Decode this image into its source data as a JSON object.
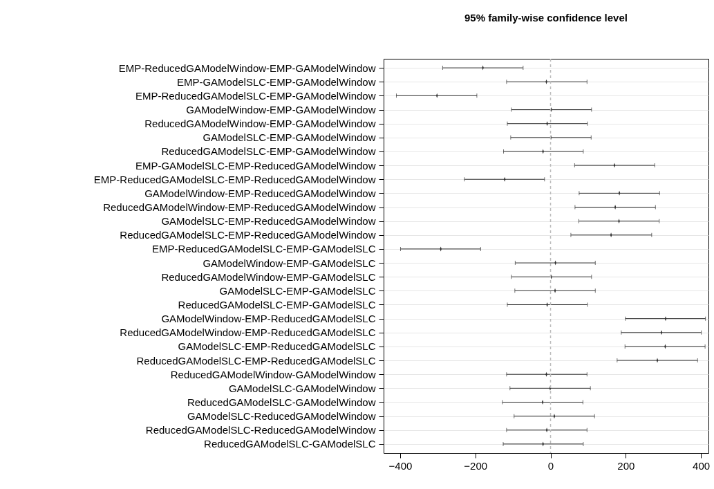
{
  "chart_data": {
    "type": "scatter",
    "title": "95% family-wise confidence level",
    "orientation": "horizontal",
    "categories": [
      "EMP-ReducedGAModelWindow-EMP-GAModelWindow",
      "EMP-GAModelSLC-EMP-GAModelWindow",
      "EMP-ReducedGAModelSLC-EMP-GAModelWindow",
      "GAModelWindow-EMP-GAModelWindow",
      "ReducedGAModelWindow-EMP-GAModelWindow",
      "GAModelSLC-EMP-GAModelWindow",
      "ReducedGAModelSLC-EMP-GAModelWindow",
      "EMP-GAModelSLC-EMP-ReducedGAModelWindow",
      "EMP-ReducedGAModelSLC-EMP-ReducedGAModelWindow",
      "GAModelWindow-EMP-ReducedGAModelWindow",
      "ReducedGAModelWindow-EMP-ReducedGAModelWindow",
      "GAModelSLC-EMP-ReducedGAModelWindow",
      "ReducedGAModelSLC-EMP-ReducedGAModelWindow",
      "EMP-ReducedGAModelSLC-EMP-GAModelSLC",
      "GAModelWindow-EMP-GAModelSLC",
      "ReducedGAModelWindow-EMP-GAModelSLC",
      "GAModelSLC-EMP-GAModelSLC",
      "ReducedGAModelSLC-EMP-GAModelSLC",
      "GAModelWindow-EMP-ReducedGAModelSLC",
      "ReducedGAModelWindow-EMP-ReducedGAModelSLC",
      "GAModelSLC-EMP-ReducedGAModelSLC",
      "ReducedGAModelSLC-EMP-ReducedGAModelSLC",
      "ReducedGAModelWindow-GAModelWindow",
      "GAModelSLC-GAModelWindow",
      "ReducedGAModelSLC-GAModelWindow",
      "GAModelSLC-ReducedGAModelWindow",
      "ReducedGAModelSLC-ReducedGAModelWindow",
      "ReducedGAModelSLC-GAModelSLC"
    ],
    "series": [
      {
        "color": "#333333",
        "values": [
          -180,
          -11,
          -302,
          2,
          -9,
          1,
          -20,
          170,
          -122,
          183,
          172,
          182,
          161,
          -292,
          13,
          2,
          12,
          -9,
          306,
          295,
          305,
          284,
          -11,
          -1,
          -21,
          10,
          -10,
          -20
        ],
        "errors": [
          [
            -287,
            -73
          ],
          [
            -117,
            97
          ],
          [
            -410,
            -196
          ],
          [
            -104,
            109
          ],
          [
            -115,
            98
          ],
          [
            -106,
            108
          ],
          [
            -125,
            87
          ],
          [
            64,
            277
          ],
          [
            -229,
            -16
          ],
          [
            76,
            290
          ],
          [
            65,
            279
          ],
          [
            75,
            289
          ],
          [
            54,
            269
          ],
          [
            -399,
            -186
          ],
          [
            -94,
            119
          ],
          [
            -104,
            109
          ],
          [
            -95,
            119
          ],
          [
            -115,
            98
          ],
          [
            199,
            412
          ],
          [
            188,
            401
          ],
          [
            198,
            411
          ],
          [
            177,
            391
          ],
          [
            -117,
            97
          ],
          [
            -108,
            106
          ],
          [
            -128,
            86
          ],
          [
            -97,
            117
          ],
          [
            -117,
            97
          ],
          [
            -126,
            87
          ]
        ]
      }
    ],
    "xlim": [
      -444,
      420
    ],
    "xticks": [
      -400,
      -200,
      0,
      200,
      400
    ],
    "grid": "y",
    "ref_lines": [
      {
        "axis": "x",
        "value": 0,
        "color": "#bbbbbb",
        "line_style": "dashed"
      }
    ]
  }
}
